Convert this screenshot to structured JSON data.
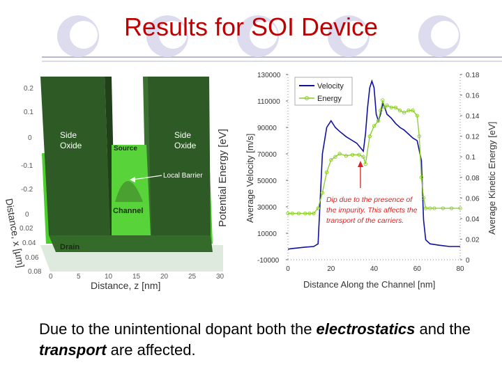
{
  "slide": {
    "title": "Results for SOI Device",
    "caption": {
      "part1": "Due to the unintentional dopant both the ",
      "em1": "electrostatics",
      "part2": " and the ",
      "em2": "transport",
      "part3": " are affected."
    },
    "colors": {
      "title": "#c00000",
      "deco_circle": "#d8d8ec",
      "deco_line": "#b7b7cf"
    }
  },
  "potential_plot": {
    "zlabel": "Potential Energy  [eV]",
    "xlabel": "Distance, z [nm]",
    "ylabel": "Distance, x [µm]",
    "z_ticks": [
      "0.2",
      "0.1",
      "0",
      "-0.1",
      "-0.2"
    ],
    "x_ticks": [
      "0",
      "0.02",
      "0.04",
      "0.06",
      "0.08"
    ],
    "dist_ticks": [
      "0",
      "5",
      "10",
      "15",
      "20",
      "25",
      "30"
    ],
    "annotations": {
      "side_oxide_left": [
        "Side",
        "Oxide"
      ],
      "side_oxide_right": [
        "Side",
        "Oxide"
      ],
      "source": "Source",
      "local_barrier": "Local Barrier",
      "channel": "Channel",
      "drain": "Drain"
    }
  },
  "chart_data": {
    "type": "line",
    "xlabel": "Distance Along the Channel [nm]",
    "ylabel": "Average Velocity [m/s]",
    "y2label": "Average Kinetic Energy [eV]",
    "xlim": [
      0,
      80
    ],
    "ylim": [
      -10000,
      130000
    ],
    "y2lim": [
      0,
      0.18
    ],
    "x_ticks": [
      "0",
      "20",
      "40",
      "60",
      "80"
    ],
    "y_ticks": [
      "130000",
      "110000",
      "90000",
      "70000",
      "50000",
      "30000",
      "10000",
      "-10000"
    ],
    "y2_ticks": [
      "0.18",
      "0.16",
      "0.14",
      "0.12",
      "0.1",
      "0.08",
      "0.06",
      "0.04",
      "0.02",
      "0"
    ],
    "legend_position": "top-left",
    "annotation": {
      "lines": [
        "Dip due to the presence of",
        "the impurity. This affects the",
        "transport of the carriers."
      ],
      "color": "#e02020"
    },
    "series": [
      {
        "name": "Velocity",
        "axis": "left",
        "color": "#1010a0",
        "x": [
          0,
          2,
          5,
          8,
          12,
          14,
          16,
          18,
          20,
          22,
          24,
          27,
          30,
          32,
          34,
          35,
          36,
          37,
          38,
          39,
          40,
          41,
          42,
          43,
          44,
          45,
          46,
          48,
          50,
          52,
          54,
          56,
          58,
          60,
          62,
          63,
          64,
          66,
          70,
          75,
          80
        ],
        "y": [
          -2000,
          -1500,
          -1000,
          -500,
          0,
          2000,
          70000,
          90000,
          95000,
          90000,
          87000,
          83000,
          80000,
          78000,
          74000,
          72000,
          85000,
          105000,
          120000,
          125000,
          120000,
          100000,
          95000,
          100000,
          108000,
          105000,
          100000,
          97000,
          93000,
          90000,
          88000,
          85000,
          82000,
          80000,
          65000,
          20000,
          5000,
          2000,
          1000,
          0,
          0
        ]
      },
      {
        "name": "Energy",
        "axis": "right",
        "color": "#88cc22",
        "x": [
          0,
          2,
          5,
          8,
          10,
          12,
          14,
          16,
          18,
          20,
          22,
          24,
          27,
          30,
          33,
          35,
          36,
          38,
          40,
          42,
          43,
          44,
          45,
          46,
          48,
          50,
          52,
          54,
          56,
          58,
          60,
          61,
          62,
          63,
          64,
          66,
          68,
          72,
          76,
          80
        ],
        "y": [
          0.045,
          0.045,
          0.045,
          0.045,
          0.045,
          0.045,
          0.05,
          0.065,
          0.085,
          0.097,
          0.1,
          0.103,
          0.101,
          0.102,
          0.102,
          0.1,
          0.093,
          0.12,
          0.13,
          0.135,
          0.145,
          0.155,
          0.148,
          0.15,
          0.148,
          0.148,
          0.145,
          0.143,
          0.145,
          0.145,
          0.14,
          0.12,
          0.08,
          0.06,
          0.05,
          0.05,
          0.05,
          0.05,
          0.05,
          0.05
        ]
      }
    ]
  }
}
